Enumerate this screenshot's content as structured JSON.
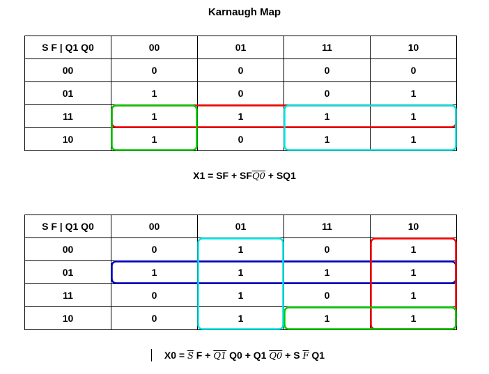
{
  "title": "Karnaugh Map",
  "map1": {
    "corner": "S F | Q1 Q0",
    "columns": [
      "00",
      "01",
      "11",
      "10"
    ],
    "rows": [
      {
        "label": "00",
        "cells": [
          "0",
          "0",
          "0",
          "0"
        ]
      },
      {
        "label": "01",
        "cells": [
          "1",
          "0",
          "0",
          "1"
        ]
      },
      {
        "label": "11",
        "cells": [
          "1",
          "1",
          "1",
          "1"
        ]
      },
      {
        "label": "10",
        "cells": [
          "1",
          "0",
          "1",
          "1"
        ]
      }
    ],
    "groups": [
      {
        "name": "SF",
        "color": "#ff0000",
        "rows": [
          2,
          2
        ],
        "cols": [
          0,
          3
        ]
      },
      {
        "name": "SFQ0bar",
        "color": "#00cc00",
        "rows": [
          2,
          3
        ],
        "cols": [
          0,
          0
        ]
      },
      {
        "name": "SQ1",
        "color": "#00e5e5",
        "rows": [
          2,
          3
        ],
        "cols": [
          2,
          3
        ]
      }
    ]
  },
  "equation1": {
    "prefix": "X1 = SF + SF",
    "ov_term": "Q0",
    "suffix": " + SQ1"
  },
  "map2": {
    "corner": "S F | Q1 Q0",
    "columns": [
      "00",
      "01",
      "11",
      "10"
    ],
    "rows": [
      {
        "label": "00",
        "cells": [
          "0",
          "1",
          "0",
          "1"
        ]
      },
      {
        "label": "01",
        "cells": [
          "1",
          "1",
          "1",
          "1"
        ]
      },
      {
        "label": "11",
        "cells": [
          "0",
          "1",
          "0",
          "1"
        ]
      },
      {
        "label": "10",
        "cells": [
          "0",
          "1",
          "1",
          "1"
        ]
      }
    ],
    "groups": [
      {
        "name": "SbarF",
        "color": "#0000cc",
        "rows": [
          1,
          1
        ],
        "cols": [
          0,
          3
        ]
      },
      {
        "name": "Q1barQ0",
        "color": "#00e5e5",
        "rows": [
          0,
          3
        ],
        "cols": [
          1,
          1
        ]
      },
      {
        "name": "Q1Q0bar",
        "color": "#ff0000",
        "rows": [
          0,
          3
        ],
        "cols": [
          3,
          3
        ]
      },
      {
        "name": "SFbarQ1",
        "color": "#00cc00",
        "rows": [
          3,
          3
        ],
        "cols": [
          2,
          3
        ]
      }
    ]
  },
  "equation2": {
    "p1": "X0 = ",
    "ov1": "S",
    "p2": " F + ",
    "ov2": "Q1",
    "p3": " Q0 + Q1 ",
    "ov3": "Q0",
    "p4": " + S ",
    "ov4": "F",
    "p5": " Q1"
  }
}
